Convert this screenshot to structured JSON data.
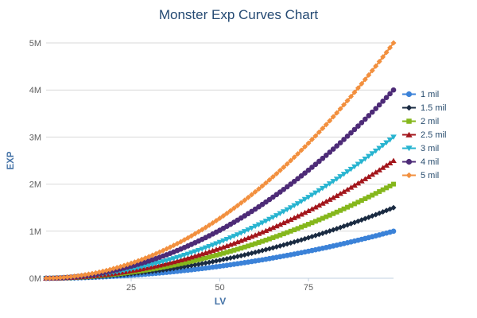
{
  "chart_data": {
    "type": "line",
    "title": "Monster Exp Curves Chart",
    "xlabel": "LV",
    "ylabel": "EXP",
    "x_ticks": [
      25,
      50,
      75
    ],
    "y_tick_labels": [
      "0M",
      "1M",
      "2M",
      "3M",
      "4M",
      "5M"
    ],
    "y_tick_values": [
      0,
      1000000,
      2000000,
      3000000,
      4000000,
      5000000
    ],
    "xlim": [
      1,
      99
    ],
    "ylim": [
      0,
      5000000
    ],
    "min_level": 1,
    "max_level": 99,
    "exponent": 2,
    "curve_formula": "exp(lv) = max_exp * (lv/99)^2",
    "grid": "horizontal-only",
    "legend_position": "right",
    "sample_levels": [
      1,
      25,
      50,
      75,
      99
    ],
    "series": [
      {
        "name": "1 mil",
        "max_exp": 1000000,
        "color": "#3b82d8",
        "marker": "circle",
        "sample_values": [
          100,
          63800,
          255100,
          573900,
          1000000
        ]
      },
      {
        "name": "1.5 mil",
        "max_exp": 1500000,
        "color": "#1a2b42",
        "marker": "diamond",
        "sample_values": [
          150,
          95700,
          382600,
          860900,
          1500000
        ]
      },
      {
        "name": "2 mil",
        "max_exp": 2000000,
        "color": "#85b71c",
        "marker": "square",
        "sample_values": [
          200,
          127500,
          510200,
          1147800,
          2000000
        ]
      },
      {
        "name": "2.5 mil",
        "max_exp": 2500000,
        "color": "#a3161c",
        "marker": "triangle-up",
        "sample_values": [
          260,
          159400,
          637700,
          1434800,
          2500000
        ]
      },
      {
        "name": "3 mil",
        "max_exp": 3000000,
        "color": "#28b4d0",
        "marker": "triangle-down",
        "sample_values": [
          310,
          191300,
          765200,
          1721800,
          3000000
        ]
      },
      {
        "name": "4 mil",
        "max_exp": 4000000,
        "color": "#4d2b77",
        "marker": "circle",
        "sample_values": [
          410,
          255100,
          1020300,
          2295700,
          4000000
        ]
      },
      {
        "name": "5 mil",
        "max_exp": 5000000,
        "color": "#f2903f",
        "marker": "diamond",
        "sample_values": [
          510,
          318800,
          1275400,
          2869600,
          5000000
        ]
      }
    ],
    "colors": {
      "title": "#254a73",
      "axis_title": "#4573a7",
      "tick_label": "#606060",
      "legend_text": "#274b6d",
      "gridline": "#d9d9d9",
      "axis_line": "#c0d0e0",
      "background": "#ffffff"
    }
  }
}
